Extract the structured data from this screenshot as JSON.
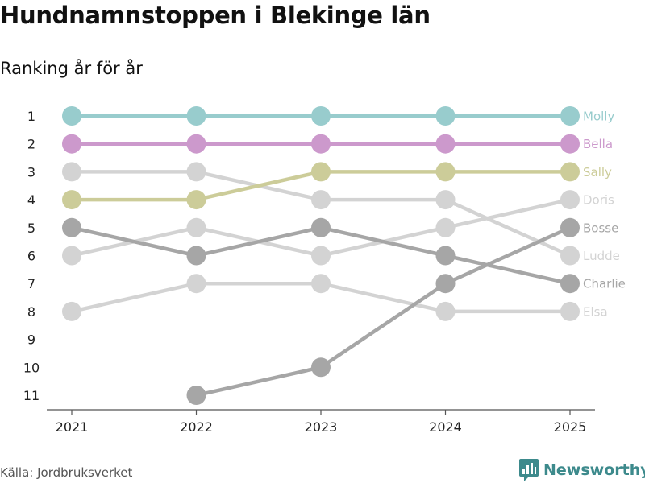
{
  "header": {
    "title": "Hundnamnstoppen i Blekinge län",
    "subtitle": "Ranking år för år"
  },
  "footer": {
    "source": "Källa: Jordbruksverket",
    "brand": "Newsworthy"
  },
  "colors": {
    "highlight_1": "#98cccd",
    "highlight_2": "#cc99cc",
    "highlight_3": "#cccc99",
    "dark_gray": "#a6a6a6",
    "light_gray": "#d3d3d3",
    "axis": "#555555",
    "brand": "#3d8a8c"
  },
  "chart_data": {
    "type": "line",
    "subtype": "bump",
    "title": "Hundnamnstoppen i Blekinge län",
    "subtitle": "Ranking år för år",
    "xlabel": "",
    "ylabel": "",
    "categories": [
      "2021",
      "2022",
      "2023",
      "2024",
      "2025"
    ],
    "y_ticks": [
      1,
      2,
      3,
      4,
      5,
      6,
      7,
      8,
      9,
      10,
      11
    ],
    "ylim": [
      1,
      11
    ],
    "y_reversed": true,
    "grid": false,
    "legend": "direct labels at right end",
    "series": [
      {
        "name": "Elsa",
        "values": [
          8,
          7,
          7,
          8,
          8
        ],
        "color": "#d3d3d3"
      },
      {
        "name": "Ludde",
        "values": [
          3,
          3,
          4,
          4,
          6
        ],
        "color": "#d3d3d3"
      },
      {
        "name": "Doris",
        "values": [
          6,
          5,
          6,
          5,
          4
        ],
        "color": "#d3d3d3"
      },
      {
        "name": "Charlie",
        "values": [
          5,
          6,
          5,
          6,
          7
        ],
        "color": "#a6a6a6"
      },
      {
        "name": "Bosse",
        "values": [
          null,
          11,
          10,
          7,
          5
        ],
        "color": "#a6a6a6"
      },
      {
        "name": "Sally",
        "values": [
          4,
          4,
          3,
          3,
          3
        ],
        "color": "#cccc99"
      },
      {
        "name": "Bella",
        "values": [
          2,
          2,
          2,
          2,
          2
        ],
        "color": "#cc99cc"
      },
      {
        "name": "Molly",
        "values": [
          1,
          1,
          1,
          1,
          1
        ],
        "color": "#98cccd"
      }
    ]
  }
}
